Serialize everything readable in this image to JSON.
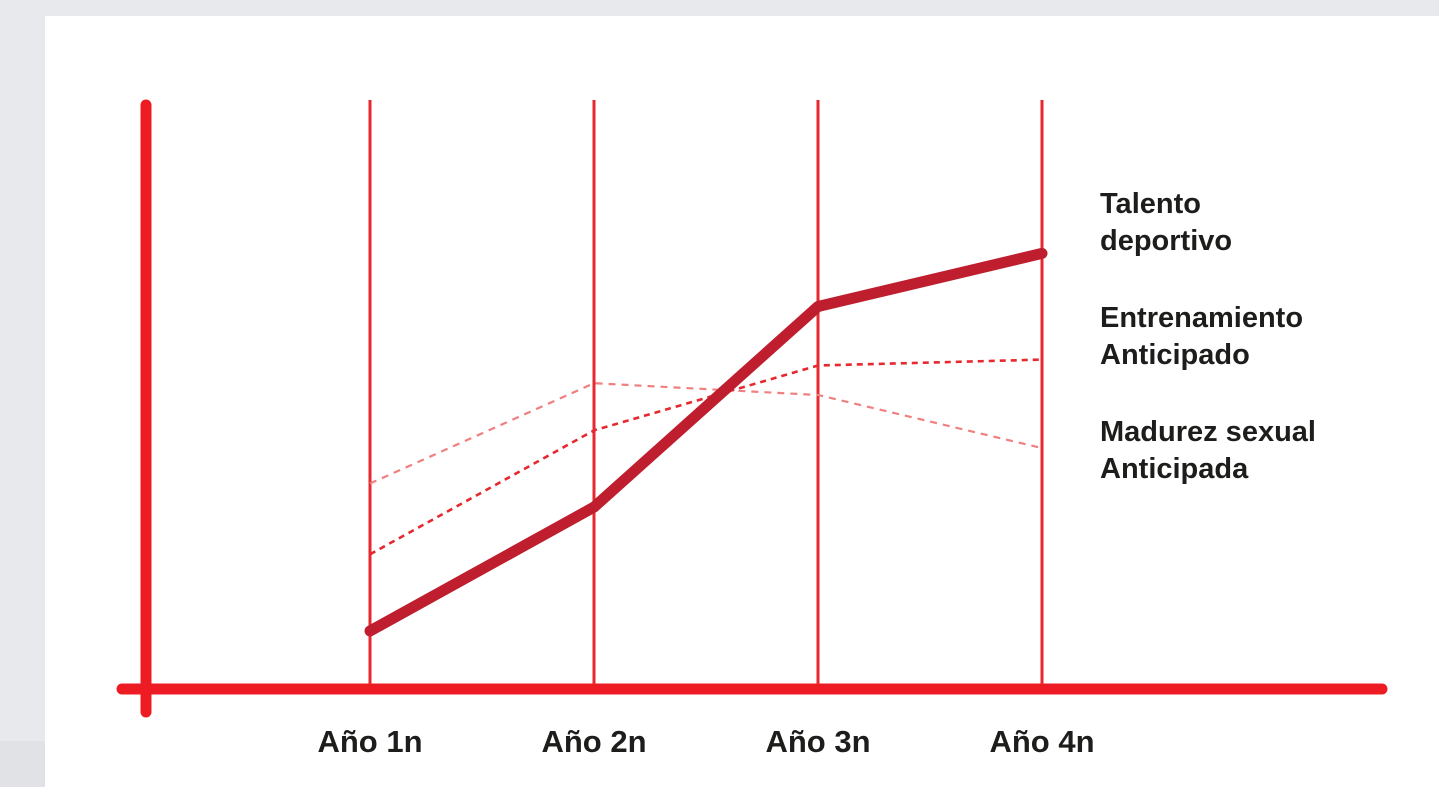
{
  "chart_data": {
    "type": "line",
    "categories": [
      "Año 1n",
      "Año 2n",
      "Año 3n",
      "Año 4n"
    ],
    "ylim": [
      0,
      100
    ],
    "grid": "vertical lines at categories",
    "series": [
      {
        "name": "Talento deportivo",
        "label_lines": [
          "Talento",
          "deportivo"
        ],
        "values": [
          10,
          31,
          65,
          74
        ],
        "color": "#be1e2d",
        "style": "solid-thick"
      },
      {
        "name": "Entrenamiento Anticipado",
        "label_lines": [
          "Entrenamiento",
          "Anticipado"
        ],
        "values": [
          23,
          44,
          55,
          56
        ],
        "color": "#e6282f",
        "style": "dashed"
      },
      {
        "name": "Madurez sexual Anticipada",
        "label_lines": [
          "Madurez sexual",
          "Anticipada"
        ],
        "values": [
          35,
          52,
          50,
          41
        ],
        "color": "#f08080",
        "style": "dashed-light"
      }
    ]
  },
  "colors": {
    "axis": "#ed1c24",
    "gridline": "#e6282f",
    "text": "#1d1d1b"
  }
}
